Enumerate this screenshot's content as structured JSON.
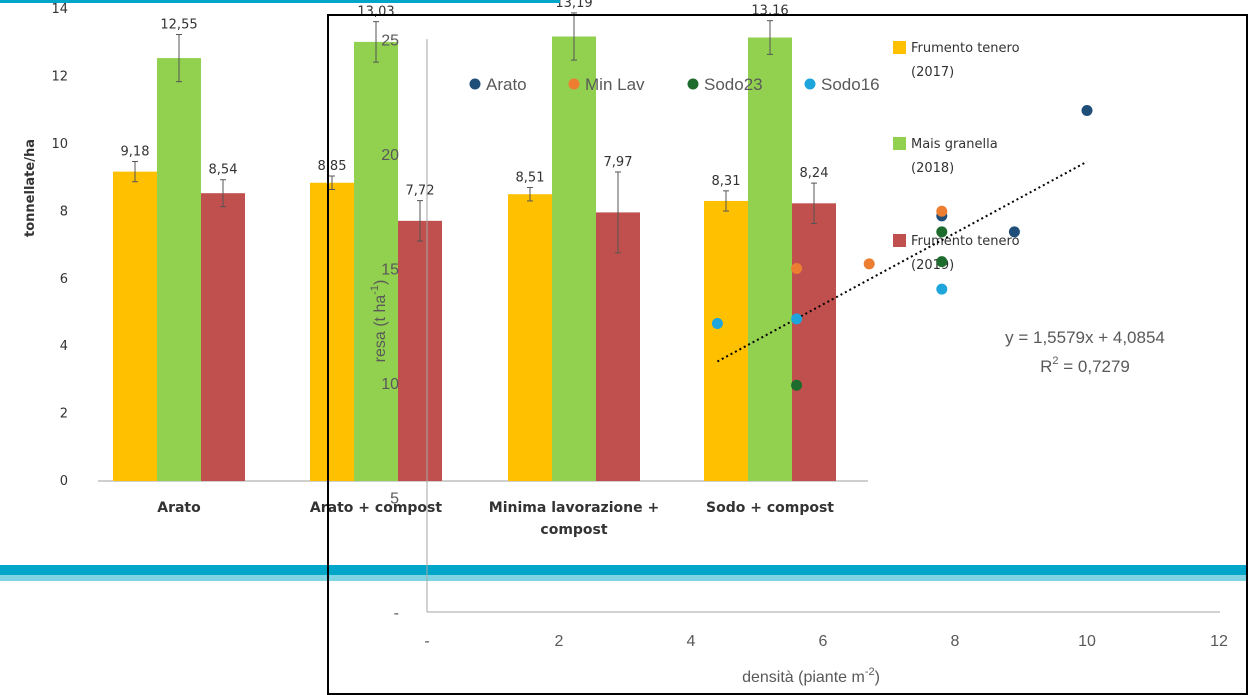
{
  "chart_data": [
    {
      "type": "bar",
      "ylabel": "tonnellate/ha",
      "ylim": [
        0,
        14
      ],
      "y_ticks": [
        "0",
        "2",
        "4",
        "6",
        "8",
        "10",
        "12",
        "14"
      ],
      "categories": [
        {
          "lines": [
            "Arato"
          ]
        },
        {
          "lines": [
            "Arato + compost"
          ]
        },
        {
          "lines": [
            "Minima lavorazione +",
            "compost"
          ]
        },
        {
          "lines": [
            "Sodo + compost"
          ]
        }
      ],
      "series": [
        {
          "legend": [
            "Frumento tenero",
            "(2017)"
          ],
          "color": "#ffc000",
          "values": [
            9.18,
            8.85,
            8.51,
            8.31
          ],
          "labels": [
            "9,18",
            "8,85",
            "8,51",
            "8,31"
          ],
          "err": [
            0.3,
            0.2,
            0.2,
            0.3
          ]
        },
        {
          "legend": [
            "Mais granella",
            "(2018)"
          ],
          "color": "#92d050",
          "values": [
            12.55,
            13.03,
            13.19,
            13.16
          ],
          "labels": [
            "12,55",
            "13,03",
            "13,19",
            "13,16"
          ],
          "err": [
            0.7,
            0.6,
            0.7,
            0.5
          ]
        },
        {
          "legend": [
            "Frumento tenero",
            "(2019)"
          ],
          "color": "#c0504d",
          "values": [
            8.54,
            7.72,
            7.97,
            8.24
          ],
          "labels": [
            "8,54",
            "7,72",
            "7,97",
            "8,24"
          ],
          "err": [
            0.4,
            0.6,
            1.2,
            0.6
          ]
        }
      ]
    },
    {
      "type": "scatter",
      "xlabel": "densità (piante m",
      "xlabel_sup": "-2",
      "xlabel_end": ")",
      "ylabel": "resa (t ha",
      "ylabel_sup": "-1",
      "ylabel_end": ")",
      "xlim": [
        0,
        12
      ],
      "ylim": [
        0,
        25
      ],
      "x_ticks": [
        {
          "v": 0,
          "t": "-"
        },
        {
          "v": 2,
          "t": "2"
        },
        {
          "v": 4,
          "t": "4"
        },
        {
          "v": 6,
          "t": "6"
        },
        {
          "v": 8,
          "t": "8"
        },
        {
          "v": 10,
          "t": "10"
        },
        {
          "v": 12,
          "t": "12"
        }
      ],
      "y_ticks": [
        {
          "v": 0,
          "t": "-"
        },
        {
          "v": 5,
          "t": "5"
        },
        {
          "v": 10,
          "t": "10"
        },
        {
          "v": 15,
          "t": "15"
        },
        {
          "v": 20,
          "t": "20"
        },
        {
          "v": 25,
          "t": "25"
        }
      ],
      "series": [
        {
          "name": "Arato",
          "color": "#1f4e79",
          "points": [
            [
              8.9,
              16.6
            ],
            [
              10.0,
              21.9
            ],
            [
              7.8,
              17.3
            ]
          ]
        },
        {
          "name": "Min Lav",
          "color": "#ed7d31",
          "points": [
            [
              6.7,
              15.2
            ],
            [
              7.8,
              17.5
            ],
            [
              5.6,
              15.0
            ]
          ]
        },
        {
          "name": "Sodo23",
          "color": "#1e6b2e",
          "points": [
            [
              7.8,
              16.6
            ],
            [
              7.8,
              15.3
            ],
            [
              5.6,
              9.9
            ]
          ]
        },
        {
          "name": "Sodo16",
          "color": "#1ea5dc",
          "points": [
            [
              4.4,
              12.6
            ],
            [
              5.6,
              12.8
            ],
            [
              7.8,
              14.1
            ]
          ]
        }
      ],
      "trendline": {
        "slope": 1.5579,
        "intercept": 4.0854,
        "x_range": [
          4.4,
          10.0
        ]
      },
      "equation": "y = 1,5579x + 4,0854",
      "r2_prefix": "R",
      "r2_sup": "2",
      "r2_value": " = 0,7279"
    }
  ]
}
